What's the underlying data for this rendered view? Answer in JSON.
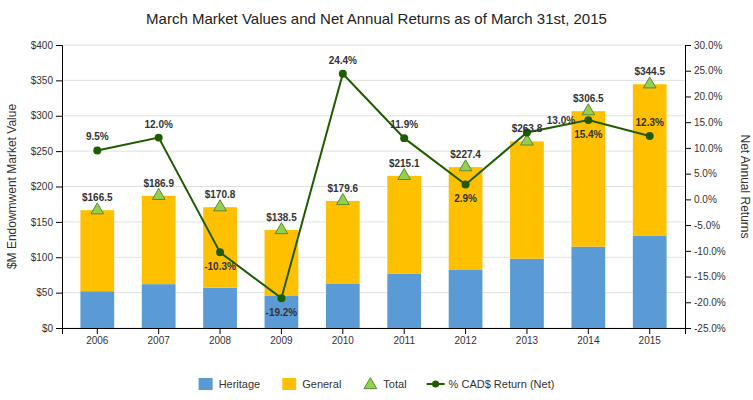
{
  "chart_data": {
    "type": "bar",
    "title": "March Market Values and Net Annual Returns as of March 31st, 2015",
    "x_label": null,
    "y_label": "$M Endowmwent Market Value",
    "y2_label": "Net Annual Returns",
    "categories": [
      "2006",
      "2007",
      "2008",
      "2009",
      "2010",
      "2011",
      "2012",
      "2013",
      "2014",
      "2015"
    ],
    "series": [
      {
        "name": "Heritage",
        "type": "bar",
        "color": "#5B9BD5",
        "values": [
          52,
          62,
          57,
          46,
          63,
          77,
          82,
          98,
          115,
          130
        ]
      },
      {
        "name": "General",
        "type": "bar",
        "color": "#FFC000",
        "values": [
          114.5,
          124.9,
          113.8,
          92.5,
          116.6,
          138.1,
          145.4,
          165.8,
          191.5,
          214.5
        ]
      },
      {
        "name": "Total",
        "type": "scatter",
        "marker": "triangle",
        "color": "#92D050",
        "values": [
          166.5,
          186.9,
          170.8,
          138.5,
          179.6,
          215.1,
          227.4,
          263.8,
          306.5,
          344.5
        ],
        "value_labels": [
          "$166.5",
          "$186.9",
          "$170.8",
          "$138.5",
          "$179.6",
          "$215.1",
          "$227.4",
          "$263.8",
          "$306.5",
          "$344.5"
        ]
      },
      {
        "name": "% CAD$ Return (Net)",
        "type": "line",
        "marker": "circle",
        "axis": "y2",
        "color": "#1F5C00",
        "values": [
          9.5,
          12.0,
          -10.3,
          -19.2,
          24.4,
          11.9,
          2.9,
          13.0,
          15.4,
          12.3
        ],
        "value_labels": [
          "9.5%",
          "12.0%",
          "-10.3%",
          "-19.2%",
          "24.4%",
          "11.9%",
          "2.9%",
          "13.0%",
          "15.4%",
          "12.3%"
        ]
      }
    ],
    "stacked": true,
    "data_labels": true,
    "ylim": [
      0,
      400
    ],
    "yticks": [
      {
        "value": 0,
        "label": "$0"
      },
      {
        "value": 50,
        "label": "$50"
      },
      {
        "value": 100,
        "label": "$100"
      },
      {
        "value": 150,
        "label": "$150"
      },
      {
        "value": 200,
        "label": "$200"
      },
      {
        "value": 250,
        "label": "$250"
      },
      {
        "value": 300,
        "label": "$300"
      },
      {
        "value": 350,
        "label": "$350"
      },
      {
        "value": 400,
        "label": "$400"
      }
    ],
    "y2lim": [
      -25.0,
      30.0
    ],
    "y2ticks": [
      {
        "value": -25.0,
        "label": "-25.0%"
      },
      {
        "value": -20.0,
        "label": "-20.0%"
      },
      {
        "value": -15.0,
        "label": "-15.0%"
      },
      {
        "value": -10.0,
        "label": "-10.0%"
      },
      {
        "value": -5.0,
        "label": "-5.0%"
      },
      {
        "value": 0.0,
        "label": "0.0%"
      },
      {
        "value": 5.0,
        "label": "5.0%"
      },
      {
        "value": 10.0,
        "label": "10.0%"
      },
      {
        "value": 15.0,
        "label": "15.0%"
      },
      {
        "value": 20.0,
        "label": "20.0%"
      },
      {
        "value": 25.0,
        "label": "25.0%"
      },
      {
        "value": 30.0,
        "label": "30.0%"
      }
    ],
    "grid": true,
    "legend": "bottom"
  }
}
